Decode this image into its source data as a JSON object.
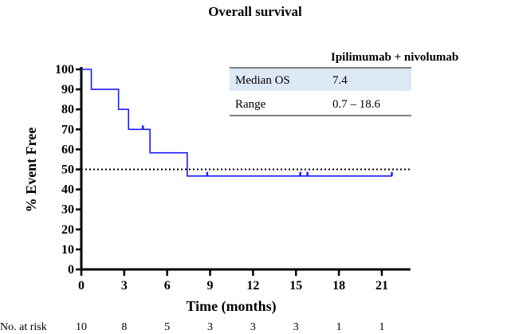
{
  "chart_data": {
    "type": "line",
    "subtype": "kaplan-meier",
    "title": "Overall survival",
    "xlabel": "Time (months)",
    "ylabel": "% Event Free",
    "xlim": [
      0,
      23
    ],
    "ylim": [
      0,
      100
    ],
    "xticks": [
      0,
      3,
      6,
      9,
      12,
      15,
      18,
      21
    ],
    "yticks": [
      0,
      10,
      20,
      30,
      40,
      50,
      60,
      70,
      80,
      90,
      100
    ],
    "series": [
      {
        "name": "Ipilimumab + nivolumab",
        "color": "#1a1aff",
        "steps": [
          [
            0,
            100
          ],
          [
            0.7,
            90
          ],
          [
            2.6,
            80
          ],
          [
            3.3,
            70
          ],
          [
            4.8,
            58.3
          ],
          [
            7.4,
            46.7
          ],
          [
            21.7,
            46.7
          ]
        ],
        "censored": [
          [
            4.3,
            70
          ],
          [
            8.8,
            46.7
          ],
          [
            15.3,
            46.7
          ],
          [
            15.8,
            46.7
          ],
          [
            21.7,
            46.7
          ]
        ]
      }
    ],
    "reference_line": {
      "y": 50,
      "style": "dotted"
    },
    "at_risk": {
      "label": "No. at risk",
      "values": [
        10,
        8,
        5,
        3,
        3,
        3,
        1,
        1
      ]
    },
    "table": {
      "header": "Ipilimumab + nivolumab",
      "rows": [
        {
          "label": "Median OS",
          "value": "7.4"
        },
        {
          "label": "Range",
          "value": "0.7 – 18.6"
        }
      ],
      "highlight_color": "#dde8f5"
    }
  }
}
